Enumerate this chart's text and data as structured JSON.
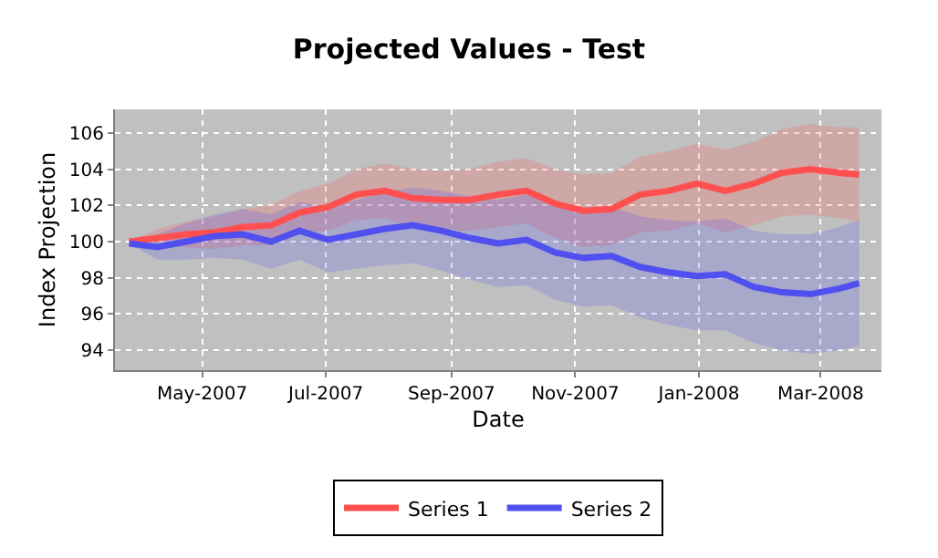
{
  "chart_data": {
    "type": "line",
    "title": "Projected Values - Test",
    "xlabel": "Date",
    "ylabel": "Index Projection",
    "x": [
      "2007-03-26",
      "2007-04-09",
      "2007-04-23",
      "2007-05-07",
      "2007-05-21",
      "2007-06-04",
      "2007-06-18",
      "2007-07-02",
      "2007-07-16",
      "2007-07-30",
      "2007-08-13",
      "2007-08-27",
      "2007-09-10",
      "2007-09-24",
      "2007-10-08",
      "2007-10-22",
      "2007-11-05",
      "2007-11-19",
      "2007-12-03",
      "2007-12-17",
      "2007-12-31",
      "2008-01-14",
      "2008-01-28",
      "2008-02-11",
      "2008-02-25",
      "2008-03-10",
      "2008-03-20"
    ],
    "series": [
      {
        "name": "Series 1",
        "color": "#ff4f4f",
        "values": [
          100.0,
          100.2,
          100.4,
          100.5,
          100.8,
          100.9,
          101.6,
          101.9,
          102.6,
          102.8,
          102.4,
          102.3,
          102.3,
          102.6,
          102.8,
          102.1,
          101.7,
          101.8,
          102.6,
          102.8,
          103.2,
          102.8,
          103.2,
          103.8,
          104.0,
          103.8,
          103.7
        ],
        "lower": [
          100.0,
          99.7,
          99.7,
          99.6,
          99.8,
          99.8,
          100.4,
          100.6,
          101.2,
          101.3,
          100.8,
          100.7,
          100.6,
          100.8,
          101.0,
          100.2,
          99.7,
          99.8,
          100.5,
          100.6,
          101.0,
          100.5,
          100.9,
          101.4,
          101.5,
          101.3,
          101.1
        ],
        "upper": [
          100.0,
          100.7,
          101.1,
          101.4,
          101.8,
          102.0,
          102.8,
          103.2,
          104.0,
          104.3,
          104.0,
          103.9,
          104.0,
          104.4,
          104.6,
          104.0,
          103.7,
          103.8,
          104.7,
          105.0,
          105.4,
          105.1,
          105.5,
          106.2,
          106.5,
          106.3,
          106.3
        ]
      },
      {
        "name": "Series 2",
        "color": "#5050f0",
        "values": [
          99.9,
          99.7,
          100.0,
          100.3,
          100.4,
          100.0,
          100.6,
          100.1,
          100.4,
          100.7,
          100.9,
          100.6,
          100.2,
          99.9,
          100.1,
          99.4,
          99.1,
          99.2,
          98.6,
          98.3,
          98.1,
          98.2,
          97.5,
          97.2,
          97.1,
          97.4,
          97.7
        ],
        "lower": [
          99.9,
          99.0,
          99.0,
          99.1,
          99.0,
          98.5,
          99.0,
          98.3,
          98.5,
          98.7,
          98.8,
          98.4,
          97.9,
          97.5,
          97.6,
          96.8,
          96.4,
          96.5,
          95.8,
          95.4,
          95.1,
          95.1,
          94.4,
          94.0,
          93.8,
          94.0,
          94.2
        ],
        "upper": [
          99.9,
          100.4,
          101.0,
          101.5,
          101.8,
          101.5,
          102.2,
          101.9,
          102.3,
          102.7,
          103.0,
          102.8,
          102.5,
          102.3,
          102.6,
          102.0,
          101.8,
          101.9,
          101.4,
          101.2,
          101.1,
          101.3,
          100.6,
          100.4,
          100.4,
          100.8,
          101.2
        ]
      }
    ],
    "xlim": [
      "2007-03-19",
      "2008-03-31"
    ],
    "xticks": [
      {
        "value": "2007-05-01",
        "label": "May-2007"
      },
      {
        "value": "2007-07-01",
        "label": "Jul-2007"
      },
      {
        "value": "2007-09-01",
        "label": "Sep-2007"
      },
      {
        "value": "2007-11-01",
        "label": "Nov-2007"
      },
      {
        "value": "2008-01-01",
        "label": "Jan-2008"
      },
      {
        "value": "2008-03-01",
        "label": "Mar-2008"
      }
    ],
    "ylim": [
      92.9,
      107.3
    ],
    "yticks": [
      94,
      96,
      98,
      100,
      102,
      104,
      106
    ],
    "grid": true,
    "legend": "bottom",
    "line_style": "solid",
    "marker": "none"
  }
}
